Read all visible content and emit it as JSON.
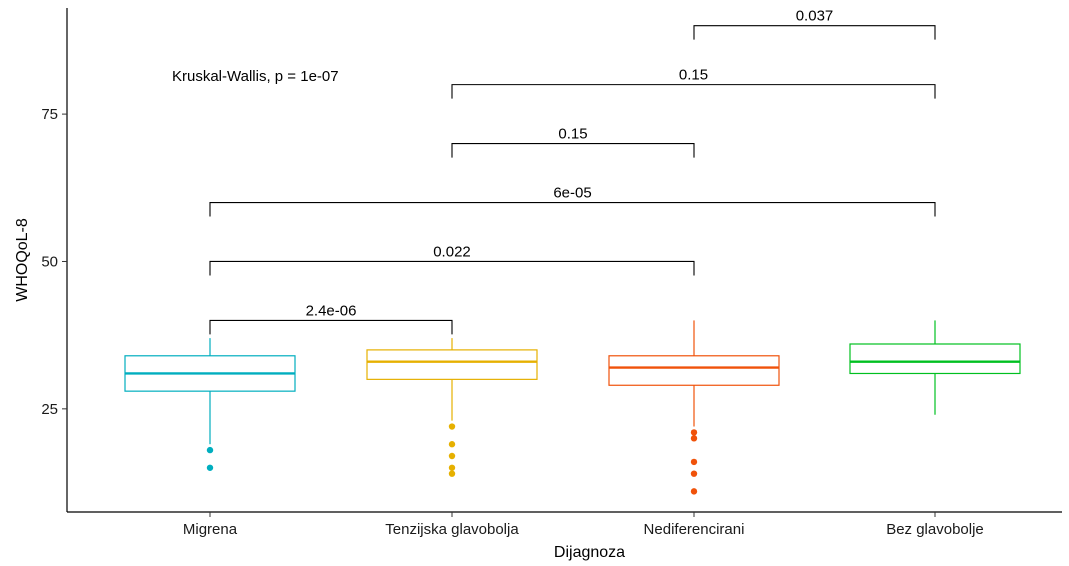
{
  "chart_data": {
    "type": "box",
    "xlabel": "Dijagnoza",
    "ylabel": "WHOQoL-8",
    "ylim": [
      7.5,
      93
    ],
    "yticks": [
      25,
      50,
      75
    ],
    "categories": [
      "Migrena",
      "Tenzijska glavobolja",
      "Nediferencirani",
      "Bez glavobolje"
    ],
    "colors": [
      "#00aebf",
      "#e6b000",
      "#f0520a",
      "#00c020"
    ],
    "boxes": [
      {
        "category": "Migrena",
        "q1": 28,
        "median": 31,
        "q3": 34,
        "whisker_low": 19,
        "whisker_high": 37,
        "outliers": [
          18,
          15
        ]
      },
      {
        "category": "Tenzijska glavobolja",
        "q1": 30,
        "median": 33,
        "q3": 35,
        "whisker_low": 23,
        "whisker_high": 37,
        "outliers": [
          22,
          19,
          17,
          15,
          14
        ]
      },
      {
        "category": "Nediferencirani",
        "q1": 29,
        "median": 32,
        "q3": 34,
        "whisker_low": 22,
        "whisker_high": 40,
        "outliers": [
          21,
          20,
          16,
          14,
          11
        ]
      },
      {
        "category": "Bez glavobolje",
        "q1": 31,
        "median": 33,
        "q3": 36,
        "whisker_low": 24,
        "whisker_high": 40,
        "outliers": []
      }
    ],
    "global_test": {
      "text": "Kruskal-Wallis, p = 1e-07",
      "x_category": "Migrena",
      "y": 81.5
    },
    "comparisons": [
      {
        "from": "Migrena",
        "to": "Tenzijska glavobolja",
        "label": "2.4e-06",
        "y": 40
      },
      {
        "from": "Migrena",
        "to": "Nediferencirani",
        "label": "0.022",
        "y": 50
      },
      {
        "from": "Migrena",
        "to": "Bez glavobolje",
        "label": "6e-05",
        "y": 60
      },
      {
        "from": "Tenzijska glavobolja",
        "to": "Nediferencirani",
        "label": "0.15",
        "y": 70
      },
      {
        "from": "Tenzijska glavobolja",
        "to": "Bez glavobolje",
        "label": "0.15",
        "y": 80
      },
      {
        "from": "Nediferencirani",
        "to": "Bez glavobolje",
        "label": "0.037",
        "y": 90
      }
    ]
  }
}
